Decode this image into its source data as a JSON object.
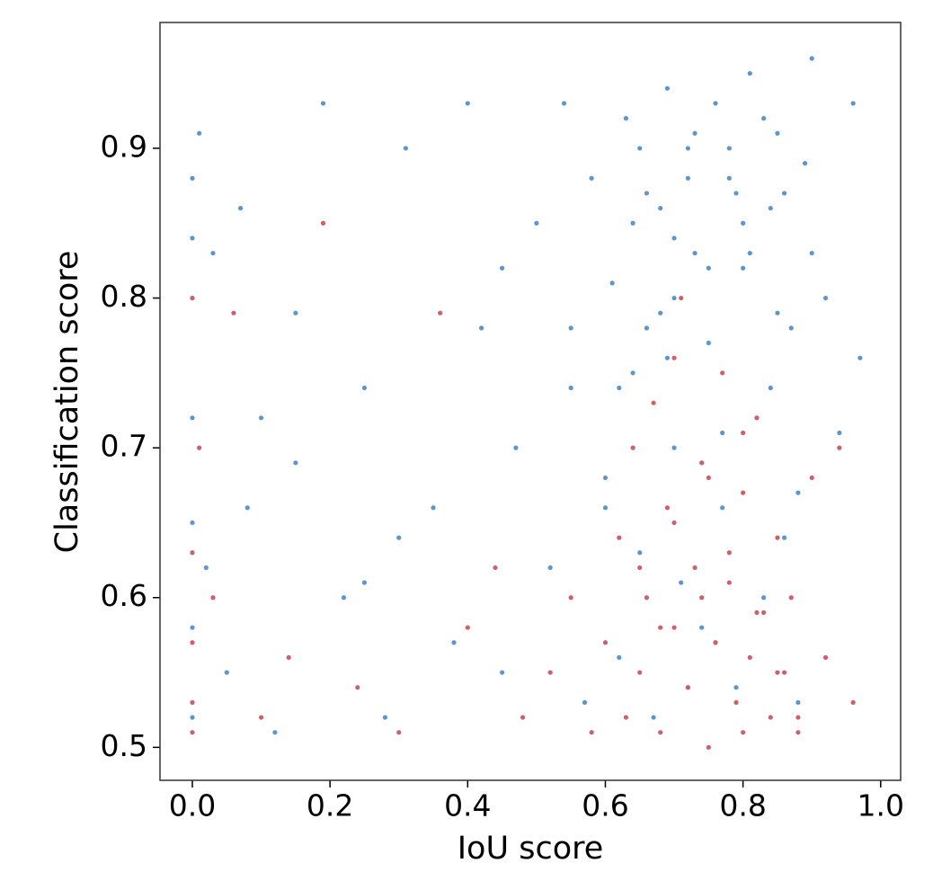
{
  "chart_data": {
    "type": "scatter",
    "x_label": "IoU score",
    "y_label": "Classification score",
    "xlim": [
      -0.047,
      1.029
    ],
    "ylim": [
      0.478,
      0.984
    ],
    "xticks": [
      {
        "value": 0,
        "label": "0.0"
      },
      0.2,
      0.4,
      0.6,
      0.8,
      {
        "value": 1,
        "label": "1.0"
      }
    ],
    "yticks": [
      0.5,
      0.6,
      0.7,
      0.8,
      0.9
    ],
    "series": [
      {
        "color": "#5b96d0",
        "x": [
          0,
          0,
          0,
          0,
          0,
          0,
          0,
          0.01,
          0.02,
          0.03,
          0.05,
          0.07,
          0.1,
          0.12,
          0.15,
          0.19,
          0.22,
          0.25,
          0.28,
          0.31,
          0.35,
          0.38,
          0.4,
          0.42,
          0.45,
          0.47,
          0.5,
          0.52,
          0.54,
          0.55,
          0.57,
          0.58,
          0.6,
          0.61,
          0.62,
          0.63,
          0.64,
          0.65,
          0.66,
          0.67,
          0.68,
          0.69,
          0.7,
          0.71,
          0.72,
          0.73,
          0.74,
          0.75,
          0.76,
          0.77,
          0.78,
          0.79,
          0.8,
          0.81,
          0.82,
          0.83,
          0.84,
          0.85,
          0.86,
          0.87,
          0.88,
          0.89,
          0.9,
          0.92,
          0.94,
          0.96,
          0.97,
          0.65,
          0.68,
          0.7,
          0.72,
          0.75,
          0.78,
          0.8,
          0.83,
          0.86,
          0.9,
          0.62,
          0.66,
          0.7,
          0.74,
          0.79,
          0.84,
          0.88,
          0.6,
          0.64,
          0.69,
          0.73,
          0.77,
          0.81,
          0.85,
          0.15,
          0.3,
          0.45,
          0.08,
          0.25,
          0.55
        ],
        "values": [
          0.88,
          0.84,
          0.8,
          0.72,
          0.65,
          0.58,
          0.52,
          0.91,
          0.62,
          0.83,
          0.55,
          0.86,
          0.72,
          0.51,
          0.79,
          0.93,
          0.6,
          0.74,
          0.52,
          0.9,
          0.66,
          0.57,
          0.93,
          0.78,
          0.55,
          0.7,
          0.85,
          0.62,
          0.93,
          0.74,
          0.53,
          0.88,
          0.68,
          0.81,
          0.56,
          0.92,
          0.75,
          0.63,
          0.87,
          0.52,
          0.79,
          0.94,
          0.7,
          0.61,
          0.9,
          0.83,
          0.58,
          0.77,
          0.93,
          0.66,
          0.88,
          0.54,
          0.82,
          0.95,
          0.72,
          0.6,
          0.86,
          0.91,
          0.64,
          0.78,
          0.53,
          0.89,
          0.96,
          0.8,
          0.71,
          0.93,
          0.76,
          0.9,
          0.86,
          0.84,
          0.88,
          0.82,
          0.9,
          0.85,
          0.92,
          0.87,
          0.83,
          0.74,
          0.78,
          0.8,
          0.69,
          0.87,
          0.74,
          0.67,
          0.66,
          0.85,
          0.76,
          0.91,
          0.71,
          0.83,
          0.79,
          0.69,
          0.64,
          0.82,
          0.66,
          0.61,
          0.78
        ]
      },
      {
        "color": "#cd6068",
        "x": [
          0,
          0,
          0,
          0,
          0,
          0.01,
          0.03,
          0.06,
          0.1,
          0.14,
          0.19,
          0.24,
          0.3,
          0.36,
          0.4,
          0.44,
          0.48,
          0.52,
          0.55,
          0.58,
          0.6,
          0.62,
          0.63,
          0.64,
          0.65,
          0.66,
          0.67,
          0.68,
          0.69,
          0.7,
          0.71,
          0.72,
          0.73,
          0.74,
          0.75,
          0.76,
          0.77,
          0.78,
          0.79,
          0.8,
          0.81,
          0.82,
          0.83,
          0.84,
          0.85,
          0.86,
          0.87,
          0.88,
          0.9,
          0.92,
          0.94,
          0.96,
          0.65,
          0.68,
          0.7,
          0.72,
          0.74,
          0.76,
          0.78,
          0.8,
          0.82,
          0.85,
          0.88,
          0.7,
          0.75,
          0.8
        ],
        "values": [
          0.8,
          0.63,
          0.57,
          0.53,
          0.51,
          0.7,
          0.6,
          0.79,
          0.52,
          0.56,
          0.85,
          0.54,
          0.51,
          0.79,
          0.58,
          0.62,
          0.52,
          0.55,
          0.6,
          0.51,
          0.57,
          0.64,
          0.52,
          0.7,
          0.55,
          0.6,
          0.73,
          0.51,
          0.66,
          0.58,
          0.8,
          0.54,
          0.62,
          0.69,
          0.5,
          0.57,
          0.75,
          0.61,
          0.53,
          0.67,
          0.56,
          0.72,
          0.59,
          0.52,
          0.64,
          0.55,
          0.6,
          0.51,
          0.68,
          0.56,
          0.7,
          0.53,
          0.62,
          0.58,
          0.65,
          0.54,
          0.6,
          0.57,
          0.63,
          0.51,
          0.59,
          0.55,
          0.52,
          0.76,
          0.68,
          0.71
        ]
      }
    ]
  }
}
